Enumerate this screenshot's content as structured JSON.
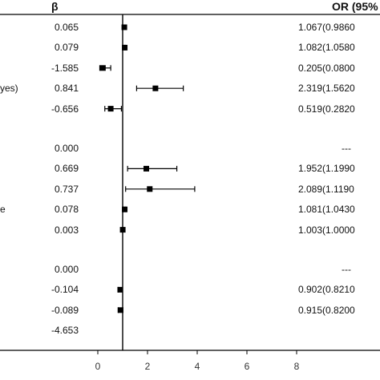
{
  "chart_data": {
    "type": "forest",
    "headers": {
      "beta": "β",
      "or_ci": "OR (95%"
    },
    "row_labels": [
      "yes)",
      "e"
    ],
    "rows": [
      {
        "beta": "0.065",
        "or": 1.067,
        "lo": 0.986,
        "hi": 1.15,
        "or_text": "1.067(0.9860"
      },
      {
        "beta": "0.079",
        "or": 1.082,
        "lo": 1.058,
        "hi": 1.106,
        "or_text": "1.082(1.0580"
      },
      {
        "beta": "-1.585",
        "or": 0.205,
        "lo": 0.08,
        "hi": 0.52,
        "or_text": "0.205(0.0800"
      },
      {
        "beta": "0.841",
        "or": 2.319,
        "lo": 1.562,
        "hi": 3.44,
        "or_text": "2.319(1.5620"
      },
      {
        "beta": "-0.656",
        "or": 0.519,
        "lo": 0.282,
        "hi": 0.95,
        "or_text": "0.519(0.2820"
      },
      {
        "beta": "0.000",
        "or": null,
        "lo": null,
        "hi": null,
        "or_text": "---"
      },
      {
        "beta": "0.669",
        "or": 1.952,
        "lo": 1.199,
        "hi": 3.18,
        "or_text": "1.952(1.1990"
      },
      {
        "beta": "0.737",
        "or": 2.089,
        "lo": 1.119,
        "hi": 3.9,
        "or_text": "2.089(1.1190"
      },
      {
        "beta": "0.078",
        "or": 1.081,
        "lo": 1.043,
        "hi": 1.12,
        "or_text": "1.081(1.0430"
      },
      {
        "beta": "0.003",
        "or": 1.003,
        "lo": 1.0,
        "hi": 1.006,
        "or_text": "1.003(1.0000"
      },
      {
        "beta": "0.000",
        "or": null,
        "lo": null,
        "hi": null,
        "or_text": "---"
      },
      {
        "beta": "-0.104",
        "or": 0.902,
        "lo": 0.821,
        "hi": 0.99,
        "or_text": "0.902(0.8210"
      },
      {
        "beta": "-0.089",
        "or": 0.915,
        "lo": 0.82,
        "hi": 1.01,
        "or_text": "0.915(0.8200"
      },
      {
        "beta": "-4.653",
        "or": null,
        "lo": null,
        "hi": null,
        "or_text": ""
      }
    ],
    "row_gaps_after": [
      4,
      9
    ],
    "x_ticks": [
      0,
      2,
      4,
      6,
      8
    ],
    "xlim": [
      -1,
      8.5
    ],
    "reference_line": 1
  }
}
